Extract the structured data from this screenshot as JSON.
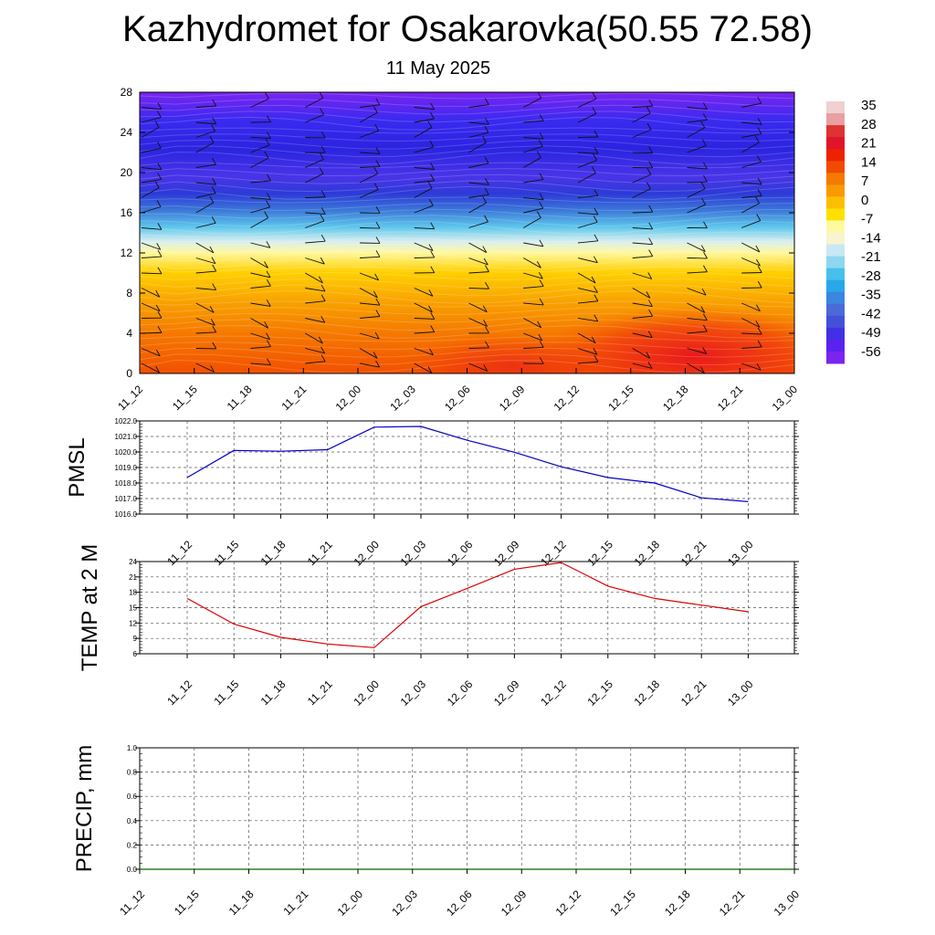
{
  "title": "Kazhydromet for Osakarovka(50.55 72.58)",
  "subtitle": "11 May 2025",
  "time_labels": [
    "11_12",
    "11_15",
    "11_18",
    "11_21",
    "12_00",
    "12_03",
    "12_06",
    "12_09",
    "12_12",
    "12_15",
    "12_18",
    "12_21",
    "13_00"
  ],
  "colors": {
    "pmsl_line": "#0000cc",
    "temp_line": "#dd0000",
    "precip_line": "#006400",
    "grid": "#555555"
  },
  "chart_data": [
    {
      "id": "cross_section",
      "type": "heatmap",
      "title": "",
      "xlabel": "",
      "ylabel": "",
      "x": [
        "11_12",
        "11_15",
        "11_18",
        "11_21",
        "12_00",
        "12_03",
        "12_06",
        "12_09",
        "12_12",
        "12_15",
        "12_18",
        "12_21",
        "13_00"
      ],
      "ylim": [
        0,
        28
      ],
      "y_ticks": [
        0,
        4,
        8,
        12,
        16,
        20,
        24,
        28
      ],
      "colorbar_labels": [
        "35",
        "28",
        "21",
        "14",
        "7",
        "0",
        "-7",
        "-14",
        "-21",
        "-28",
        "-35",
        "-42",
        "-49",
        "-56"
      ],
      "colorbar_colors": [
        "#f0d0d0",
        "#e8a0a0",
        "#dd3333",
        "#e0142b",
        "#ee2200",
        "#f24a00",
        "#f57800",
        "#f89a00",
        "#fbbf00",
        "#fee000",
        "#fffaa0",
        "#f8f4d0",
        "#c8e8f4",
        "#8fd6f0",
        "#48c0ec",
        "#28a8e8",
        "#3a86e0",
        "#4a6ad8",
        "#4450d8",
        "#4230e4",
        "#5a22f0",
        "#7a24f0"
      ]
    },
    {
      "id": "pmsl",
      "type": "line",
      "ylabel": "PMSL",
      "ylim": [
        1016.0,
        1022.0
      ],
      "y_ticks": [
        "1016.0",
        "1017.0",
        "1018.0",
        "1019.0",
        "1020.0",
        "1021.0",
        "1022.0"
      ],
      "x": [
        "11_12",
        "11_15",
        "11_18",
        "11_21",
        "12_00",
        "12_03",
        "12_06",
        "12_09",
        "12_12",
        "12_15",
        "12_18",
        "12_21",
        "13_00"
      ],
      "values": [
        1018.35,
        1020.1,
        1020.05,
        1020.15,
        1021.6,
        1021.65,
        1020.75,
        1019.98,
        1019.05,
        1018.35,
        1018.0,
        1017.05,
        1016.8
      ]
    },
    {
      "id": "temp2m",
      "type": "line",
      "ylabel": "TEMP at 2 M",
      "ylim": [
        6,
        24
      ],
      "y_ticks": [
        "6",
        "9",
        "12",
        "15",
        "18",
        "21",
        "24"
      ],
      "x": [
        "11_12",
        "11_15",
        "11_18",
        "11_21",
        "12_00",
        "12_03",
        "12_06",
        "12_09",
        "12_12",
        "12_15",
        "12_18",
        "12_21",
        "13_00"
      ],
      "values": [
        16.8,
        11.8,
        9.2,
        7.9,
        7.2,
        15.2,
        18.8,
        22.5,
        23.8,
        19.2,
        16.8,
        15.5,
        14.2
      ]
    },
    {
      "id": "precip",
      "type": "line",
      "ylabel": "PRECIP, mm",
      "ylim": [
        0.0,
        1.0
      ],
      "y_ticks": [
        "0.0",
        "0.2",
        "0.4",
        "0.6",
        "0.8",
        "1.0"
      ],
      "x": [
        "11_12",
        "11_15",
        "11_18",
        "11_21",
        "12_00",
        "12_03",
        "12_06",
        "12_09",
        "12_12",
        "12_15",
        "12_18",
        "12_21",
        "13_00"
      ],
      "values": [
        0,
        0,
        0,
        0,
        0,
        0,
        0,
        0,
        0,
        0,
        0,
        0,
        0
      ]
    }
  ]
}
